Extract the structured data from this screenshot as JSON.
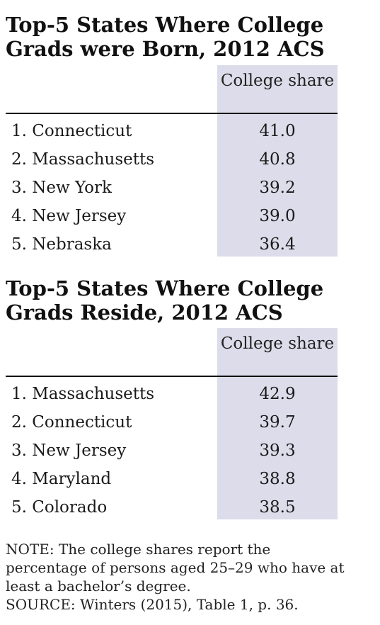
{
  "chart_data": [
    {
      "type": "table",
      "title": "Top-5 States Where College Grads were Born, 2012 ACS",
      "column_header": "College share",
      "rows": [
        {
          "label": "1. Connecticut",
          "value": "41.0"
        },
        {
          "label": "2. Massachusetts",
          "value": "40.8"
        },
        {
          "label": "3. New York",
          "value": "39.2"
        },
        {
          "label": "4. New Jersey",
          "value": "39.0"
        },
        {
          "label": "5. Nebraska",
          "value": "36.4"
        }
      ]
    },
    {
      "type": "table",
      "title": "Top-5 States Where College Grads Reside, 2012 ACS",
      "column_header": "College share",
      "rows": [
        {
          "label": "1. Massachusetts",
          "value": "42.9"
        },
        {
          "label": "2. Connecticut",
          "value": "39.7"
        },
        {
          "label": "3. New Jersey",
          "value": "39.3"
        },
        {
          "label": "4. Maryland",
          "value": "38.8"
        },
        {
          "label": "5. Colorado",
          "value": "38.5"
        }
      ]
    }
  ],
  "note": "NOTE: The college shares report the percentage of persons aged 25–29 who have at least a bachelor’s degree.",
  "source": "SOURCE: Winters (2015), Table 1, p. 36.",
  "colors": {
    "column_highlight": "#dcdcea",
    "rule": "#111111"
  }
}
